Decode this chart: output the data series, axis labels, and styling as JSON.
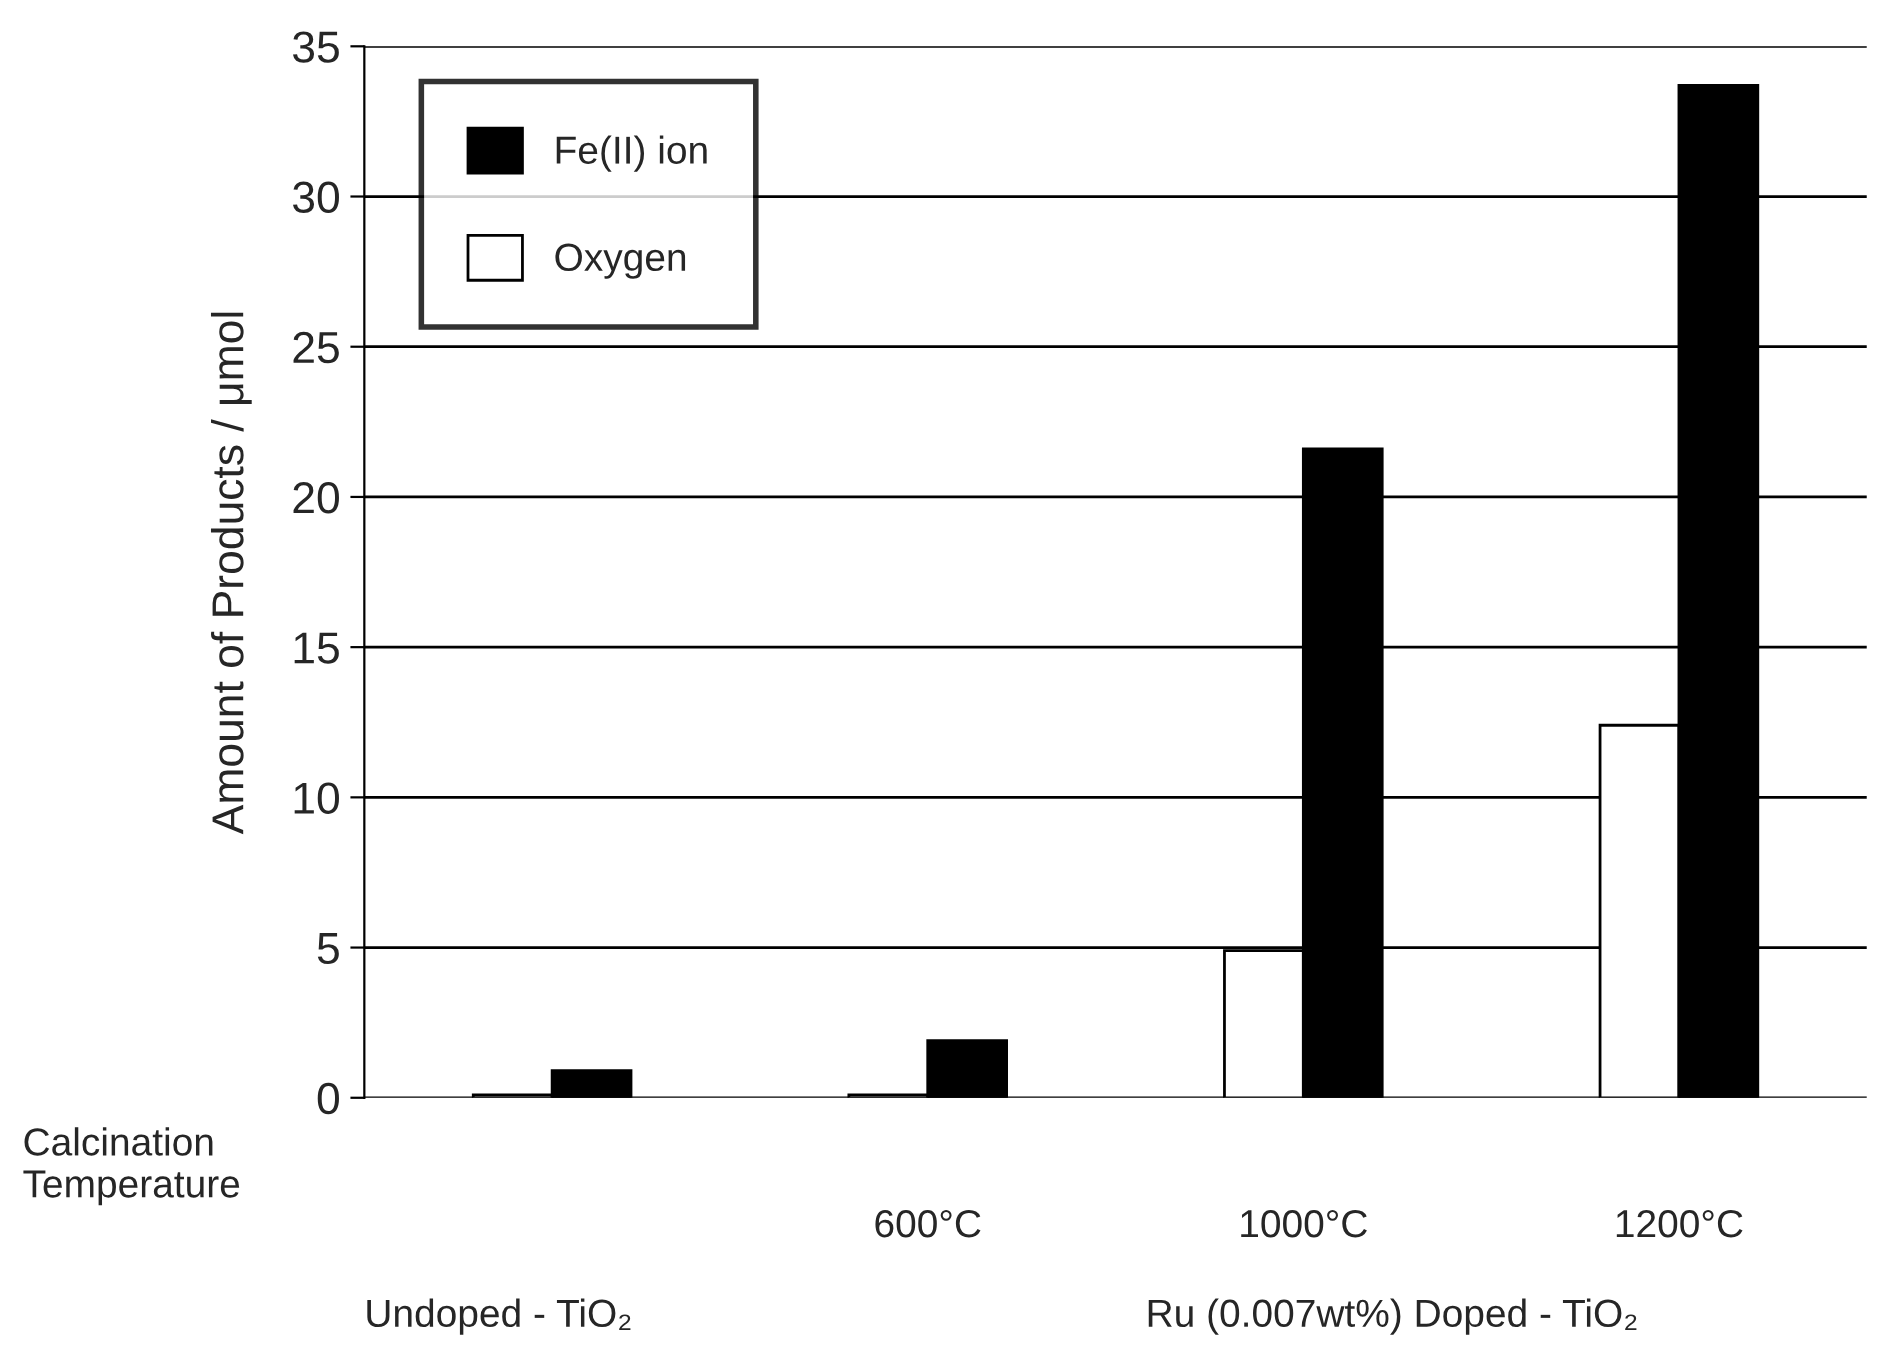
{
  "chart_data": {
    "type": "bar",
    "ylabel": "Amount of Products / μmol",
    "categories": [
      null,
      "600°C",
      "1000°C",
      "1200°C"
    ],
    "series": [
      {
        "name": "Oxygen",
        "color": "#ffffff",
        "values": [
          0.1,
          0.1,
          4.9,
          12.4
        ]
      },
      {
        "name": "Fe(II) ion",
        "color": "#000000",
        "values": [
          0.9,
          1.9,
          21.6,
          33.7
        ]
      }
    ],
    "ylim": [
      0,
      35
    ],
    "yticks": [
      0,
      5,
      10,
      15,
      20,
      25,
      30,
      35
    ],
    "grid": "y",
    "legend": "top left",
    "annotations": [
      "Calcination\nTemperature",
      "Undoped - TiO₂",
      "Ru (0.007wt%) Doped - TiO₂"
    ]
  }
}
